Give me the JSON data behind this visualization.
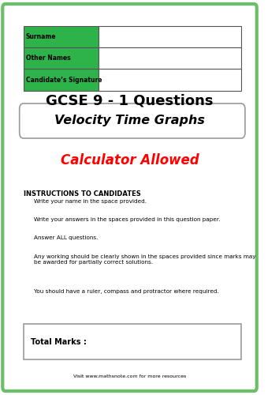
{
  "bg_color": "#ffffff",
  "border_color": "#6abf69",
  "border_linewidth": 3,
  "green_color": "#2db34a",
  "table_rows": [
    "Surname",
    "Other Names",
    "Candidate’s Signature"
  ],
  "title1": "GCSE 9 - 1 Questions",
  "title2": "Velocity Time Graphs",
  "title2_box_color": "#ffffff",
  "title2_border": "#aaaaaa",
  "calculator_text": "Calculator Allowed",
  "calculator_color": "#ff0000",
  "instructions_title": "INSTRUCTIONS TO CANDIDATES",
  "instructions": [
    "Write your name in the space provided.",
    "Write your answers in the spaces provided in this question paper.",
    "Answer ALL questions.",
    "Any working should be clearly shown in the spaces provided since marks may\nbe awarded for partially correct solutions.",
    "You should have a ruler, compass and protractor where required."
  ],
  "total_marks_text": "Total Marks :",
  "footer_text": "Visit www.mathsnote.com for more resources",
  "footer_url": "www.mathsnote.com"
}
